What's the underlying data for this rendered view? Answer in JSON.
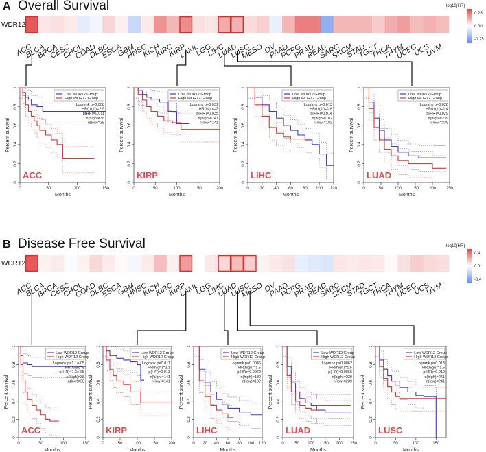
{
  "gene": "WDR12",
  "cancer_types": [
    "ACC",
    "BLCA",
    "BRCA",
    "CESC",
    "CHOL",
    "COAD",
    "DLBC",
    "ESCA",
    "GBM",
    "HNSC",
    "KICH",
    "KIRC",
    "KIRP",
    "LAML",
    "LGG",
    "LIHC",
    "LUAD",
    "LUSC",
    "MESO",
    "OV",
    "PAAD",
    "PCPG",
    "PRAD",
    "READ",
    "SARC",
    "SKCM",
    "STAD",
    "TGCT",
    "THCA",
    "THYM",
    "UCEC",
    "UCS",
    "UVM"
  ],
  "colors": {
    "high": "#e8302f",
    "low": "#3a3ad8",
    "hot": "#e34a4a",
    "cold": "#5b8def",
    "highlight": "#d33030",
    "name": "#e8454b"
  },
  "chart_data": [
    {
      "type": "heatmap",
      "panel": "A",
      "title": "Overall Survival",
      "row_label": "WDR12",
      "colorbar": {
        "title": "log10(HR)",
        "ticks": [
          0.25,
          0.0,
          -0.25
        ],
        "tick_labels": [
          "0.25",
          "0.00",
          "-0.25"
        ],
        "range": [
          -0.35,
          0.35
        ]
      },
      "values": [
        0.32,
        0.05,
        0.06,
        0.04,
        -0.06,
        -0.03,
        0.08,
        0.03,
        -0.12,
        0.04,
        0.21,
        0.14,
        0.22,
        0.06,
        0.05,
        0.16,
        0.15,
        0.07,
        0.09,
        -0.05,
        0.14,
        0.25,
        0.25,
        -0.24,
        0.14,
        0.14,
        0.14,
        0.1,
        0.16,
        0.19,
        0.13,
        0.15,
        0.13
      ],
      "highlighted": [
        "ACC",
        "KIRP",
        "LIHC",
        "LUAD"
      ]
    },
    {
      "type": "heatmap",
      "panel": "B",
      "title": "Disease Free Survival",
      "row_label": "WDR12",
      "colorbar": {
        "title": "log10(HR)",
        "ticks": [
          0.4,
          0.0,
          -0.4
        ],
        "tick_labels": [
          "0.4",
          "0.0",
          "-0.4"
        ],
        "range": [
          -0.55,
          0.55
        ]
      },
      "values": [
        0.5,
        0.04,
        0.06,
        -0.02,
        0.04,
        0.12,
        0.06,
        0.02,
        -0.04,
        0.06,
        0.2,
        0.05,
        0.3,
        0.0,
        0.07,
        0.12,
        0.2,
        0.15,
        0.04,
        0.07,
        0.09,
        -0.08,
        -0.1,
        -0.12,
        0.08,
        0.06,
        0.08,
        0.07,
        0.02,
        0.09,
        0.15,
        0.12,
        0.1
      ],
      "highlighted": [
        "ACC",
        "KIRP",
        "LIHC",
        "LUAD",
        "LUSC"
      ]
    },
    {
      "type": "line",
      "panel": "A",
      "name": "ACC",
      "xlabel": "Months",
      "ylabel": "Percent survival",
      "xlim": [
        0,
        150
      ],
      "xticks": [
        0,
        50,
        100,
        150
      ],
      "ylim": [
        0,
        1
      ],
      "yticks": [
        0,
        0.2,
        0.4,
        0.6,
        0.8,
        1.0
      ],
      "legend": [
        "Low WDR12 Group",
        "High WDR12 Group"
      ],
      "stats": [
        "Logrank p=0.008",
        "HR(high)=2.9",
        "p(HR)=0.011",
        "n(high)=38",
        "n(low)=38"
      ],
      "series": [
        {
          "name": "Low WDR12 Group",
          "x": [
            0,
            5,
            10,
            15,
            20,
            30,
            40,
            50,
            70,
            100,
            150
          ],
          "y": [
            1.0,
            0.95,
            0.9,
            0.88,
            0.82,
            0.8,
            0.75,
            0.75,
            0.75,
            0.75,
            0.75
          ]
        },
        {
          "name": "High WDR12 Group",
          "x": [
            0,
            5,
            10,
            15,
            20,
            25,
            30,
            35,
            45,
            55,
            65,
            75,
            130
          ],
          "y": [
            1.0,
            0.92,
            0.82,
            0.75,
            0.7,
            0.65,
            0.6,
            0.55,
            0.5,
            0.45,
            0.4,
            0.25,
            0.25
          ]
        }
      ]
    },
    {
      "type": "line",
      "panel": "A",
      "name": "KIRP",
      "xlabel": "Months",
      "ylabel": "Percent survival",
      "xlim": [
        0,
        200
      ],
      "xticks": [
        0,
        50,
        100,
        150,
        200
      ],
      "ylim": [
        0,
        1
      ],
      "yticks": [
        0,
        0.2,
        0.4,
        0.6,
        0.8,
        1.0
      ],
      "legend": [
        "Low WDR12 Group",
        "High WDR12 Group"
      ],
      "stats": [
        "Logrank p=0.031",
        "HR(high)=2",
        "p(HR)=0.035",
        "n(high)=141",
        "n(low)=141"
      ],
      "series": [
        {
          "name": "Low WDR12 Group",
          "x": [
            0,
            10,
            20,
            30,
            40,
            60,
            80,
            100,
            130
          ],
          "y": [
            1.0,
            0.97,
            0.93,
            0.9,
            0.88,
            0.85,
            0.75,
            0.62,
            0.62
          ]
        },
        {
          "name": "High WDR12 Group",
          "x": [
            0,
            10,
            20,
            30,
            40,
            55,
            70,
            90,
            110,
            200
          ],
          "y": [
            1.0,
            0.93,
            0.87,
            0.8,
            0.75,
            0.7,
            0.65,
            0.63,
            0.56,
            0.56
          ]
        }
      ]
    },
    {
      "type": "line",
      "panel": "A",
      "name": "LIHC",
      "xlabel": "Months",
      "ylabel": "Percent survival",
      "xlim": [
        0,
        120
      ],
      "xticks": [
        0,
        20,
        40,
        60,
        80,
        100,
        120
      ],
      "ylim": [
        0,
        1
      ],
      "yticks": [
        0,
        0.2,
        0.4,
        0.6,
        0.8,
        1.0
      ],
      "legend": [
        "Low WDR12 Group",
        "High WDR12 Group"
      ],
      "stats": [
        "Logrank p=0.013",
        "HR(high)=1.6",
        "p(HR)=0.014",
        "n(high)=182",
        "n(low)=182"
      ],
      "series": [
        {
          "name": "Low WDR12 Group",
          "x": [
            0,
            10,
            20,
            30,
            40,
            50,
            60,
            70,
            80,
            90,
            100,
            110,
            120
          ],
          "y": [
            1.0,
            0.9,
            0.82,
            0.75,
            0.68,
            0.6,
            0.55,
            0.5,
            0.45,
            0.4,
            0.3,
            0.18,
            0.18
          ]
        },
        {
          "name": "High WDR12 Group",
          "x": [
            0,
            10,
            20,
            30,
            40,
            50,
            60,
            70,
            80,
            90
          ],
          "y": [
            1.0,
            0.82,
            0.7,
            0.58,
            0.52,
            0.48,
            0.46,
            0.46,
            0.46,
            0.46
          ]
        }
      ]
    },
    {
      "type": "line",
      "panel": "A",
      "name": "LUAD",
      "xlabel": "Months",
      "ylabel": "Percent survival",
      "xlim": [
        0,
        250
      ],
      "xticks": [
        0,
        50,
        100,
        150,
        200,
        250
      ],
      "ylim": [
        0,
        1
      ],
      "yticks": [
        0,
        0.2,
        0.4,
        0.6,
        0.8,
        1.0
      ],
      "legend": [
        "Low WDR12 Group",
        "High WDR12 Group"
      ],
      "stats": [
        "Logrank p=0.028",
        "HR(high)=1.4",
        "p(HR)=0.029",
        "n(high)=239",
        "n(low)=239"
      ],
      "series": [
        {
          "name": "Low WDR12 Group",
          "x": [
            0,
            15,
            30,
            45,
            60,
            80,
            100,
            130,
            160,
            240
          ],
          "y": [
            1.0,
            0.85,
            0.68,
            0.55,
            0.45,
            0.38,
            0.32,
            0.28,
            0.26,
            0.26
          ]
        },
        {
          "name": "High WDR12 Group",
          "x": [
            0,
            15,
            30,
            45,
            60,
            80,
            100,
            130,
            200,
            240
          ],
          "y": [
            1.0,
            0.78,
            0.58,
            0.45,
            0.35,
            0.28,
            0.23,
            0.2,
            0.15,
            0.15
          ]
        }
      ]
    },
    {
      "type": "line",
      "panel": "B",
      "name": "ACC",
      "xlabel": "Months",
      "ylabel": "Percent survival",
      "xlim": [
        0,
        150
      ],
      "xticks": [
        0,
        50,
        100,
        150
      ],
      "ylim": [
        0,
        1
      ],
      "yticks": [
        0,
        0.2,
        0.4,
        0.6,
        0.8,
        1.0
      ],
      "legend": [
        "Low WDR12 Group",
        "High WDR12 Group"
      ],
      "stats": [
        "Logrank p=1.1e-05",
        "HR(high)=5",
        "p(HR)=7.3e-05",
        "n(high)=38",
        "n(low)=38"
      ],
      "series": [
        {
          "name": "Low WDR12 Group",
          "x": [
            0,
            5,
            10,
            20,
            30,
            150
          ],
          "y": [
            1.0,
            0.9,
            0.82,
            0.8,
            0.78,
            0.78
          ]
        },
        {
          "name": "High WDR12 Group",
          "x": [
            0,
            5,
            10,
            15,
            20,
            30,
            40,
            50,
            60,
            70,
            90
          ],
          "y": [
            1.0,
            0.8,
            0.62,
            0.5,
            0.42,
            0.35,
            0.3,
            0.25,
            0.2,
            0.18,
            0.18
          ]
        }
      ]
    },
    {
      "type": "line",
      "panel": "B",
      "name": "KIRP",
      "xlabel": "Months",
      "ylabel": "Percent survival",
      "xlim": [
        0,
        200
      ],
      "xticks": [
        0,
        50,
        100,
        150,
        200
      ],
      "ylim": [
        0,
        1
      ],
      "yticks": [
        0,
        0.2,
        0.4,
        0.6,
        0.8,
        1.0
      ],
      "legend": [
        "Low WDR12 Group",
        "High WDR12 Group"
      ],
      "stats": [
        "Logrank p=0.011",
        "HR(high)=2.1",
        "p(HR)=0.013",
        "n(high)=141",
        "n(low)=141"
      ],
      "series": [
        {
          "name": "Low WDR12 Group",
          "x": [
            0,
            10,
            20,
            40,
            60,
            80,
            100,
            110,
            120
          ],
          "y": [
            1.0,
            0.95,
            0.9,
            0.87,
            0.85,
            0.83,
            0.8,
            0.63,
            0.63
          ]
        },
        {
          "name": "High WDR12 Group",
          "x": [
            0,
            10,
            20,
            30,
            40,
            60,
            80,
            110,
            200
          ],
          "y": [
            1.0,
            0.85,
            0.75,
            0.68,
            0.62,
            0.58,
            0.5,
            0.38,
            0.38
          ]
        }
      ]
    },
    {
      "type": "line",
      "panel": "B",
      "name": "LIHC",
      "xlabel": "Months",
      "ylabel": "Percent survival",
      "xlim": [
        0,
        120
      ],
      "xticks": [
        0,
        20,
        40,
        60,
        80,
        100,
        120
      ],
      "ylim": [
        0,
        1
      ],
      "yticks": [
        0,
        0.2,
        0.4,
        0.6,
        0.8,
        1.0
      ],
      "legend": [
        "Low WDR12 Group",
        "High WDR12 Group"
      ],
      "stats": [
        "Logrank p=0.0046",
        "HR(high)=1.5",
        "p(HR)=0.0049",
        "n(high)=182",
        "n(low)=182"
      ],
      "series": [
        {
          "name": "Low WDR12 Group",
          "x": [
            0,
            10,
            20,
            30,
            40,
            50,
            60,
            80,
            100,
            120
          ],
          "y": [
            1.0,
            0.75,
            0.6,
            0.5,
            0.42,
            0.36,
            0.32,
            0.28,
            0.25,
            0.25
          ]
        },
        {
          "name": "High WDR12 Group",
          "x": [
            0,
            10,
            20,
            30,
            40,
            50,
            60,
            70
          ],
          "y": [
            1.0,
            0.62,
            0.45,
            0.35,
            0.3,
            0.26,
            0.22,
            0.22
          ]
        }
      ]
    },
    {
      "type": "line",
      "panel": "B",
      "name": "LUAD",
      "xlabel": "Months",
      "ylabel": "Percent survival",
      "xlim": [
        0,
        250
      ],
      "xticks": [
        0,
        50,
        100,
        150,
        200,
        250
      ],
      "ylim": [
        0,
        1
      ],
      "yticks": [
        0,
        0.2,
        0.4,
        0.6,
        0.8,
        1.0
      ],
      "legend": [
        "Low WDR12 Group",
        "High WDR12 Group"
      ],
      "stats": [
        "Logrank p=0.0062",
        "HR(high)=1.5",
        "p(HR)=0.0065",
        "n(high)=239",
        "n(low)=239"
      ],
      "series": [
        {
          "name": "Low WDR12 Group",
          "x": [
            0,
            15,
            30,
            45,
            60,
            80,
            100,
            120,
            150,
            240
          ],
          "y": [
            1.0,
            0.78,
            0.6,
            0.5,
            0.43,
            0.38,
            0.35,
            0.3,
            0.28,
            0.28
          ]
        },
        {
          "name": "High WDR12 Group",
          "x": [
            0,
            15,
            30,
            45,
            60,
            80,
            100,
            120,
            240
          ],
          "y": [
            1.0,
            0.68,
            0.5,
            0.4,
            0.35,
            0.32,
            0.3,
            0.35,
            0.35
          ]
        }
      ]
    },
    {
      "type": "line",
      "panel": "B",
      "name": "LUSC",
      "xlabel": "Months",
      "ylabel": "Percent survival",
      "xlim": [
        0,
        175
      ],
      "xticks": [
        0,
        50,
        100,
        150
      ],
      "ylim": [
        0,
        1
      ],
      "yticks": [
        0,
        0.2,
        0.4,
        0.6,
        0.8,
        1.0
      ],
      "legend": [
        "Low WDR12 Group",
        "High WDR12 Group"
      ],
      "stats": [
        "Logrank p=0.018",
        "HR(high)=1.5",
        "p(HR)=0.019",
        "n(high)=241",
        "n(low)=241"
      ],
      "series": [
        {
          "name": "Low WDR12 Group",
          "x": [
            0,
            10,
            20,
            30,
            40,
            60,
            80,
            100,
            120,
            145,
            150
          ],
          "y": [
            1.0,
            0.85,
            0.75,
            0.68,
            0.62,
            0.55,
            0.5,
            0.46,
            0.45,
            0.45,
            0.0
          ]
        },
        {
          "name": "High WDR12 Group",
          "x": [
            0,
            10,
            20,
            30,
            40,
            50,
            60,
            80,
            175
          ],
          "y": [
            1.0,
            0.78,
            0.65,
            0.56,
            0.5,
            0.45,
            0.43,
            0.43,
            0.43
          ]
        }
      ]
    }
  ]
}
